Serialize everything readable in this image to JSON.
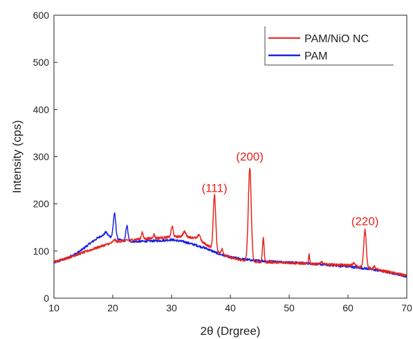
{
  "chart_data": {
    "type": "line",
    "title": "",
    "xlabel": "2θ (Drgree)",
    "ylabel": "Intensity (cps)",
    "xlim": [
      10,
      70
    ],
    "ylim": [
      0,
      600
    ],
    "xticks": [
      10,
      20,
      30,
      40,
      50,
      60,
      70
    ],
    "yticks": [
      0,
      100,
      200,
      300,
      400,
      500,
      600
    ],
    "grid": false,
    "legend_position": "top-right",
    "series": [
      {
        "name": "PAM/NiO NC",
        "color": "#e8231b",
        "baseline": [
          [
            10,
            77
          ],
          [
            12,
            84
          ],
          [
            15,
            97
          ],
          [
            18,
            110
          ],
          [
            20,
            118
          ],
          [
            22,
            122
          ],
          [
            25,
            126
          ],
          [
            28,
            128
          ],
          [
            30,
            130
          ],
          [
            32,
            131
          ],
          [
            34,
            128
          ],
          [
            36,
            113
          ],
          [
            38,
            97
          ],
          [
            40,
            86
          ],
          [
            42,
            80
          ],
          [
            44,
            77
          ],
          [
            47,
            76
          ],
          [
            50,
            75
          ],
          [
            53,
            73
          ],
          [
            56,
            72
          ],
          [
            60,
            70
          ],
          [
            63,
            65
          ],
          [
            66,
            58
          ],
          [
            68,
            53
          ],
          [
            70,
            48
          ]
        ],
        "peaks": [
          [
            20.3,
            5,
            0.3
          ],
          [
            25,
            14,
            0.2
          ],
          [
            27,
            8,
            0.2
          ],
          [
            30.1,
            22,
            0.25
          ],
          [
            32.2,
            10,
            0.35
          ],
          [
            34.7,
            12,
            0.3
          ],
          [
            37.3,
            115,
            0.3
          ],
          [
            38.6,
            12,
            0.2
          ],
          [
            43.3,
            197,
            0.35
          ],
          [
            45.6,
            50,
            0.2
          ],
          [
            53.4,
            20,
            0.15
          ],
          [
            55.5,
            5,
            0.2
          ],
          [
            61,
            6,
            0.3
          ],
          [
            62.9,
            80,
            0.3
          ],
          [
            64.5,
            6,
            0.2
          ]
        ],
        "labels": [
          {
            "text": "(111)",
            "x": 37.3,
            "y": 225
          },
          {
            "text": "(200)",
            "x": 43.3,
            "y": 292
          },
          {
            "text": "(220)",
            "x": 62.9,
            "y": 155
          }
        ]
      },
      {
        "name": "PAM",
        "color": "#1a22e0",
        "baseline": [
          [
            10,
            75
          ],
          [
            12,
            84
          ],
          [
            14,
            96
          ],
          [
            15,
            105
          ],
          [
            16,
            115
          ],
          [
            17,
            124
          ],
          [
            18,
            132
          ],
          [
            19,
            134
          ],
          [
            20,
            128
          ],
          [
            21,
            124
          ],
          [
            22,
            121
          ],
          [
            24,
            120
          ],
          [
            26,
            121
          ],
          [
            28,
            122
          ],
          [
            30,
            124
          ],
          [
            32,
            120
          ],
          [
            34,
            113
          ],
          [
            36,
            105
          ],
          [
            38,
            94
          ],
          [
            40,
            87
          ],
          [
            42,
            83
          ],
          [
            44,
            80
          ],
          [
            47,
            78
          ],
          [
            50,
            76
          ],
          [
            53,
            74
          ],
          [
            56,
            71
          ],
          [
            60,
            67
          ],
          [
            63,
            63
          ],
          [
            66,
            57
          ],
          [
            68,
            52
          ],
          [
            70,
            46
          ]
        ],
        "peaks": [
          [
            18.8,
            6,
            0.3
          ],
          [
            20.3,
            52,
            0.3
          ],
          [
            22.4,
            33,
            0.25
          ]
        ]
      }
    ]
  }
}
